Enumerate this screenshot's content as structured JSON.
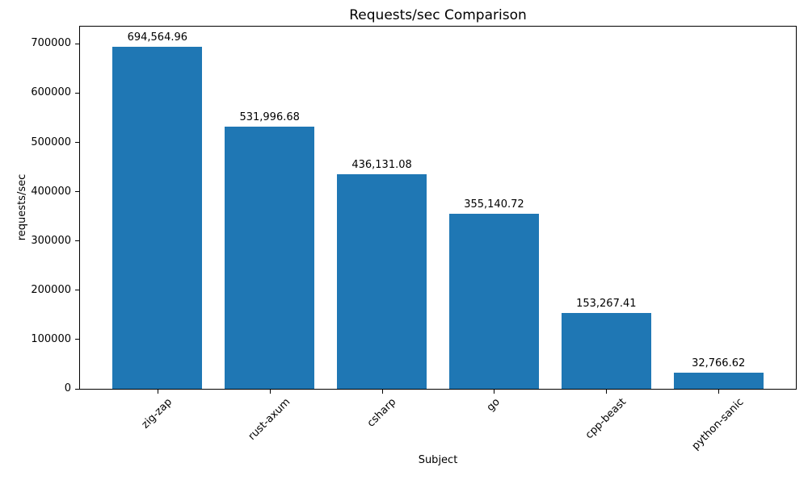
{
  "chart_data": {
    "type": "bar",
    "title": "Requests/sec Comparison",
    "xlabel": "Subject",
    "ylabel": "requests/sec",
    "categories": [
      "zig-zap",
      "rust-axum",
      "csharp",
      "go",
      "cpp-beast",
      "python-sanic"
    ],
    "values": [
      694564.96,
      531996.68,
      436131.08,
      355140.72,
      153267.41,
      32766.62
    ],
    "bar_labels": [
      "694,564.96",
      "531,996.68",
      "436,131.08",
      "355,140.72",
      "153,267.41",
      "32,766.62"
    ],
    "bar_color": "#1f77b4",
    "axis_color": "#000000",
    "background_color": "#ffffff",
    "ylim": [
      0,
      735000
    ],
    "yticks": [
      0,
      100000,
      200000,
      300000,
      400000,
      500000,
      600000,
      700000
    ],
    "ytick_labels": [
      "0",
      "100000",
      "200000",
      "300000",
      "400000",
      "500000",
      "600000",
      "700000"
    ],
    "xtick_rotation": 45,
    "grid": false,
    "legend": null
  }
}
